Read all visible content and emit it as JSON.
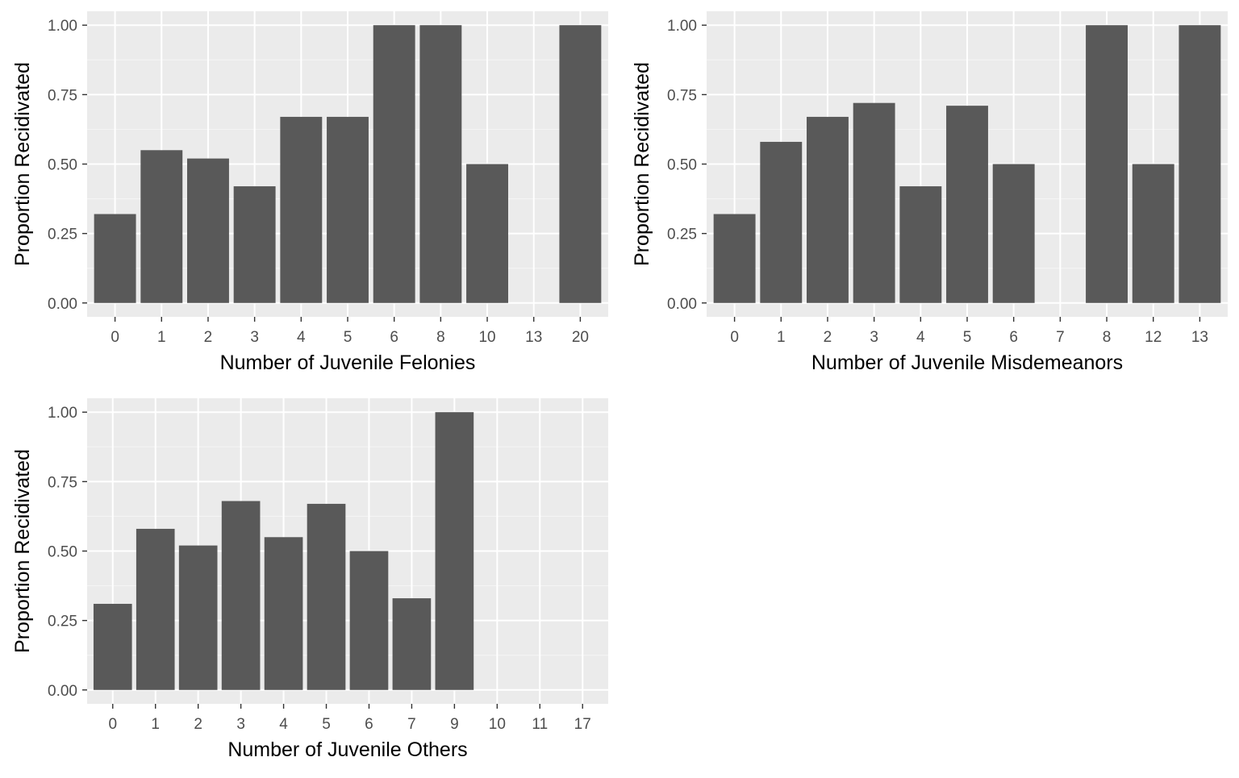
{
  "colors": {
    "panel_background": "#ebebeb",
    "grid_major": "#ffffff",
    "grid_minor": "#f5f5f5",
    "bar_fill": "#595959",
    "tick_text": "#4d4d4d",
    "axis_title_text": "#000000"
  },
  "chart_data": [
    {
      "type": "bar",
      "categories": [
        "0",
        "1",
        "2",
        "3",
        "4",
        "5",
        "6",
        "8",
        "10",
        "13",
        "20"
      ],
      "values": [
        0.32,
        0.55,
        0.52,
        0.42,
        0.67,
        0.67,
        1.0,
        1.0,
        0.5,
        0.0,
        1.0
      ],
      "xlabel": "Number of Juvenile Felonies",
      "ylabel": "Proportion Recidivated",
      "ylim": [
        0,
        1
      ],
      "yticks": [
        "0.00",
        "0.25",
        "0.50",
        "0.75",
        "1.00"
      ],
      "grid": true
    },
    {
      "type": "bar",
      "categories": [
        "0",
        "1",
        "2",
        "3",
        "4",
        "5",
        "6",
        "7",
        "8",
        "12",
        "13"
      ],
      "values": [
        0.32,
        0.58,
        0.67,
        0.72,
        0.42,
        0.71,
        0.5,
        0.0,
        1.0,
        0.5,
        1.0
      ],
      "xlabel": "Number of Juvenile Misdemeanors",
      "ylabel": "Proportion Recidivated",
      "ylim": [
        0,
        1
      ],
      "yticks": [
        "0.00",
        "0.25",
        "0.50",
        "0.75",
        "1.00"
      ],
      "grid": true
    },
    {
      "type": "bar",
      "categories": [
        "0",
        "1",
        "2",
        "3",
        "4",
        "5",
        "6",
        "7",
        "9",
        "10",
        "11",
        "17"
      ],
      "values": [
        0.31,
        0.58,
        0.52,
        0.68,
        0.55,
        0.67,
        0.5,
        0.33,
        1.0,
        0.0,
        0.0,
        0.0
      ],
      "xlabel": "Number of Juvenile Others",
      "ylabel": "Proportion Recidivated",
      "ylim": [
        0,
        1
      ],
      "yticks": [
        "0.00",
        "0.25",
        "0.50",
        "0.75",
        "1.00"
      ],
      "grid": true
    }
  ]
}
